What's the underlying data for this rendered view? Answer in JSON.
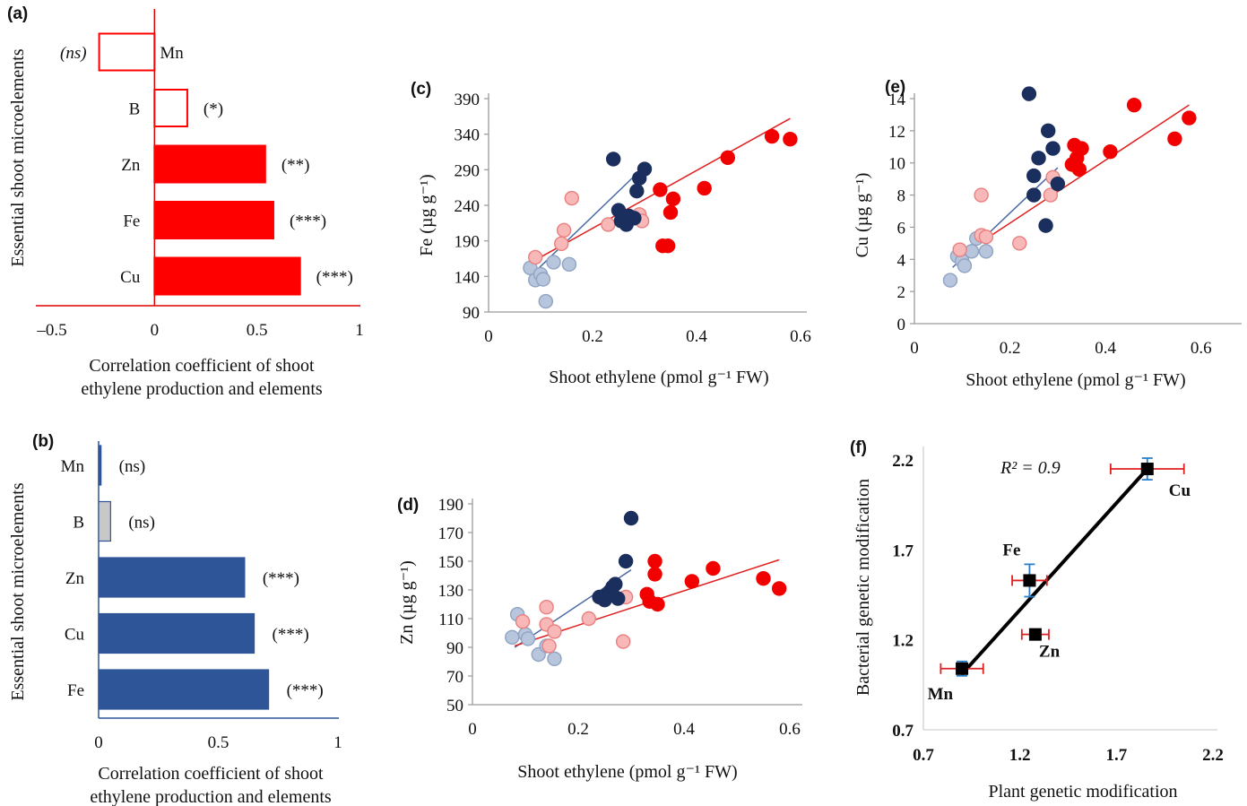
{
  "chart_data": [
    {
      "id": "a",
      "panel_label": "(a)",
      "type": "bar",
      "orientation": "horizontal",
      "categories": [
        "Mn",
        "B",
        "Zn",
        "Fe",
        "Cu"
      ],
      "values": [
        -0.27,
        0.16,
        0.54,
        0.58,
        0.71
      ],
      "significance": [
        "(ns)",
        "(*)",
        "(**)",
        "(***)",
        "(***)"
      ],
      "fill": [
        "none",
        "none",
        "#ff0000",
        "#ff0000",
        "#ff0000"
      ],
      "stroke": "#ff0000",
      "xlim": [
        -0.5,
        1
      ],
      "xticks": [
        "–0.5",
        "0",
        "0.5",
        "1"
      ],
      "xlabel": [
        "Correlation coefficient of shoot",
        "ethylene production and elements"
      ],
      "ylabel": "Essential shoot microelements"
    },
    {
      "id": "b",
      "panel_label": "(b)",
      "type": "bar",
      "orientation": "horizontal",
      "categories": [
        "Mn",
        "B",
        "Zn",
        "Cu",
        "Fe"
      ],
      "values": [
        0.01,
        0.05,
        0.61,
        0.65,
        0.71
      ],
      "significance": [
        "(ns)",
        "(ns)",
        "(***)",
        "(***)",
        "(***)"
      ],
      "fill": [
        "#2e5597",
        "#c8c8c8",
        "#2e5597",
        "#2e5597",
        "#2e5597"
      ],
      "xlim": [
        0,
        1
      ],
      "xticks": [
        "0",
        "0.5",
        "1"
      ],
      "xlabel": [
        "Correlation coefficient of shoot",
        "ethylene production and elements"
      ],
      "ylabel": "Essential shoot microelements"
    },
    {
      "id": "c",
      "panel_label": "(c)",
      "type": "scatter",
      "xlim": [
        0,
        0.6
      ],
      "ylim": [
        90,
        390
      ],
      "xticks": [
        "0",
        "0.2",
        "0.4",
        "0.6"
      ],
      "yticks": [
        "90",
        "140",
        "190",
        "240",
        "290",
        "340",
        "390"
      ],
      "xlabel": "Shoot ethylene (pmol g⁻¹ FW)",
      "ylabel": "Fe  (µg g⁻¹)",
      "series": [
        {
          "group": "light-blue",
          "color": "#b7c6dd",
          "edge": "#8fa3c3",
          "points": [
            [
              0.08,
              152
            ],
            [
              0.09,
              135
            ],
            [
              0.1,
              143
            ],
            [
              0.105,
              136
            ],
            [
              0.11,
              105
            ],
            [
              0.125,
              160
            ],
            [
              0.155,
              157
            ]
          ]
        },
        {
          "group": "light-red",
          "color": "#f8b8b8",
          "edge": "#ea7f7f",
          "points": [
            [
              0.09,
              167
            ],
            [
              0.14,
              186
            ],
            [
              0.145,
              205
            ],
            [
              0.16,
              250
            ],
            [
              0.23,
              213
            ],
            [
              0.285,
              222
            ],
            [
              0.29,
              227
            ],
            [
              0.295,
              218
            ]
          ]
        },
        {
          "group": "dark-blue",
          "color": "#1b2f5e",
          "edge": "#1b2f5e",
          "points": [
            [
              0.24,
              305
            ],
            [
              0.25,
              233
            ],
            [
              0.255,
              218
            ],
            [
              0.265,
              213
            ],
            [
              0.27,
              225
            ],
            [
              0.28,
              222
            ],
            [
              0.285,
              260
            ],
            [
              0.29,
              278
            ],
            [
              0.3,
              291
            ]
          ]
        },
        {
          "group": "red",
          "color": "#f20000",
          "edge": "#f20000",
          "points": [
            [
              0.33,
              262
            ],
            [
              0.335,
              183
            ],
            [
              0.345,
              183
            ],
            [
              0.35,
              230
            ],
            [
              0.355,
              249
            ],
            [
              0.415,
              264
            ],
            [
              0.46,
              307
            ],
            [
              0.545,
              337
            ],
            [
              0.58,
              333
            ]
          ]
        }
      ],
      "trendlines": [
        {
          "color": "#4a6aa5",
          "from": [
            0.08,
            140
          ],
          "to": [
            0.3,
            295
          ]
        },
        {
          "color": "#e02020",
          "from": [
            0.09,
            163
          ],
          "to": [
            0.58,
            362
          ]
        }
      ]
    },
    {
      "id": "d",
      "panel_label": "(d)",
      "type": "scatter",
      "xlim": [
        0,
        0.6
      ],
      "ylim": [
        50,
        190
      ],
      "xticks": [
        "0",
        "0.2",
        "0.4",
        "0.6"
      ],
      "yticks": [
        "50",
        "70",
        "90",
        "110",
        "130",
        "150",
        "170",
        "190"
      ],
      "xlabel": "Shoot ethylene (pmol g⁻¹ FW)",
      "ylabel": "Zn  (µg g⁻¹)",
      "series": [
        {
          "group": "light-blue",
          "color": "#b7c6dd",
          "edge": "#8fa3c3",
          "points": [
            [
              0.075,
              97
            ],
            [
              0.085,
              113
            ],
            [
              0.1,
              99
            ],
            [
              0.105,
              96
            ],
            [
              0.125,
              85
            ],
            [
              0.14,
              91
            ],
            [
              0.155,
              82
            ]
          ]
        },
        {
          "group": "light-red",
          "color": "#f8b8b8",
          "edge": "#ea7f7f",
          "points": [
            [
              0.095,
              108
            ],
            [
              0.14,
              106
            ],
            [
              0.14,
              118
            ],
            [
              0.145,
              91
            ],
            [
              0.155,
              101
            ],
            [
              0.22,
              110
            ],
            [
              0.285,
              94
            ],
            [
              0.29,
              125
            ]
          ]
        },
        {
          "group": "dark-blue",
          "color": "#1b2f5e",
          "edge": "#1b2f5e",
          "points": [
            [
              0.24,
              125
            ],
            [
              0.25,
              123
            ],
            [
              0.255,
              127
            ],
            [
              0.26,
              129
            ],
            [
              0.265,
              132
            ],
            [
              0.27,
              134
            ],
            [
              0.275,
              124
            ],
            [
              0.29,
              150
            ],
            [
              0.3,
              180
            ]
          ]
        },
        {
          "group": "red",
          "color": "#f20000",
          "edge": "#f20000",
          "points": [
            [
              0.33,
              127
            ],
            [
              0.335,
              122
            ],
            [
              0.345,
              150
            ],
            [
              0.345,
              141
            ],
            [
              0.35,
              120
            ],
            [
              0.415,
              136
            ],
            [
              0.455,
              145
            ],
            [
              0.55,
              138
            ],
            [
              0.58,
              131
            ]
          ]
        }
      ],
      "trendlines": [
        {
          "color": "#4a6aa5",
          "from": [
            0.08,
            90
          ],
          "to": [
            0.3,
            144
          ]
        },
        {
          "color": "#e02020",
          "from": [
            0.08,
            91
          ],
          "to": [
            0.58,
            151
          ]
        }
      ]
    },
    {
      "id": "e",
      "panel_label": "(e)",
      "type": "scatter",
      "xlim": [
        0,
        0.7
      ],
      "ylim": [
        0,
        14
      ],
      "xticks": [
        "0",
        "0.2",
        "0.4",
        "0.6"
      ],
      "yticks": [
        "0",
        "2",
        "4",
        "6",
        "8",
        "10",
        "12",
        "14"
      ],
      "xlabel": "Shoot ethylene (pmol g⁻¹ FW)",
      "ylabel": "Cu  (µg g⁻¹)",
      "series": [
        {
          "group": "light-blue",
          "color": "#b7c6dd",
          "edge": "#8fa3c3",
          "points": [
            [
              0.075,
              2.7
            ],
            [
              0.09,
              4.2
            ],
            [
              0.1,
              3.9
            ],
            [
              0.105,
              3.6
            ],
            [
              0.12,
              4.5
            ],
            [
              0.13,
              5.3
            ],
            [
              0.15,
              4.5
            ]
          ]
        },
        {
          "group": "light-red",
          "color": "#f8b8b8",
          "edge": "#ea7f7f",
          "points": [
            [
              0.095,
              4.6
            ],
            [
              0.14,
              8.0
            ],
            [
              0.14,
              5.5
            ],
            [
              0.15,
              5.4
            ],
            [
              0.22,
              5.0
            ],
            [
              0.285,
              8.0
            ],
            [
              0.29,
              9.1
            ]
          ]
        },
        {
          "group": "dark-blue",
          "color": "#1b2f5e",
          "edge": "#1b2f5e",
          "points": [
            [
              0.24,
              14.3
            ],
            [
              0.25,
              9.2
            ],
            [
              0.25,
              8.0
            ],
            [
              0.26,
              10.3
            ],
            [
              0.275,
              6.1
            ],
            [
              0.28,
              12.0
            ],
            [
              0.29,
              10.9
            ],
            [
              0.3,
              8.7
            ]
          ]
        },
        {
          "group": "red",
          "color": "#f20000",
          "edge": "#f20000",
          "points": [
            [
              0.33,
              9.9
            ],
            [
              0.335,
              11.1
            ],
            [
              0.34,
              10.3
            ],
            [
              0.345,
              9.6
            ],
            [
              0.35,
              10.9
            ],
            [
              0.41,
              10.7
            ],
            [
              0.46,
              13.6
            ],
            [
              0.545,
              11.5
            ],
            [
              0.575,
              12.8
            ]
          ]
        }
      ],
      "trendlines": [
        {
          "color": "#4a6aa5",
          "from": [
            0.08,
            3.5
          ],
          "to": [
            0.3,
            9.7
          ]
        },
        {
          "color": "#e02020",
          "from": [
            0.09,
            4.1
          ],
          "to": [
            0.575,
            13.6
          ]
        }
      ]
    },
    {
      "id": "f",
      "panel_label": "(f)",
      "type": "scatter",
      "xlim": [
        0.7,
        2.2
      ],
      "ylim": [
        0.7,
        2.2
      ],
      "xticks": [
        "0.7",
        "1.2",
        "1.7",
        "2.2"
      ],
      "yticks": [
        "0.7",
        "1.2",
        "1.7",
        "2.2"
      ],
      "xlabel": "Plant genetic modification",
      "ylabel": "Bacterial genetic modification",
      "annotation": "R² = 0.9",
      "points": [
        {
          "label": "Mn",
          "x": 0.9,
          "y": 1.04,
          "xerr": 0.11,
          "yerr": 0.04
        },
        {
          "label": "Fe",
          "x": 1.25,
          "y": 1.53,
          "xerr": 0.09,
          "yerr": 0.09
        },
        {
          "label": "Zn",
          "x": 1.28,
          "y": 1.23,
          "xerr": 0.07,
          "yerr": 0.02
        },
        {
          "label": "Cu",
          "x": 1.86,
          "y": 2.15,
          "xerr": 0.19,
          "yerr": 0.06
        }
      ],
      "trendline": {
        "color": "#000000",
        "from": [
          0.9,
          1.01
        ],
        "to": [
          1.86,
          2.15
        ]
      },
      "xerr_color": "#e02020",
      "yerr_color": "#2a7fc8"
    }
  ]
}
